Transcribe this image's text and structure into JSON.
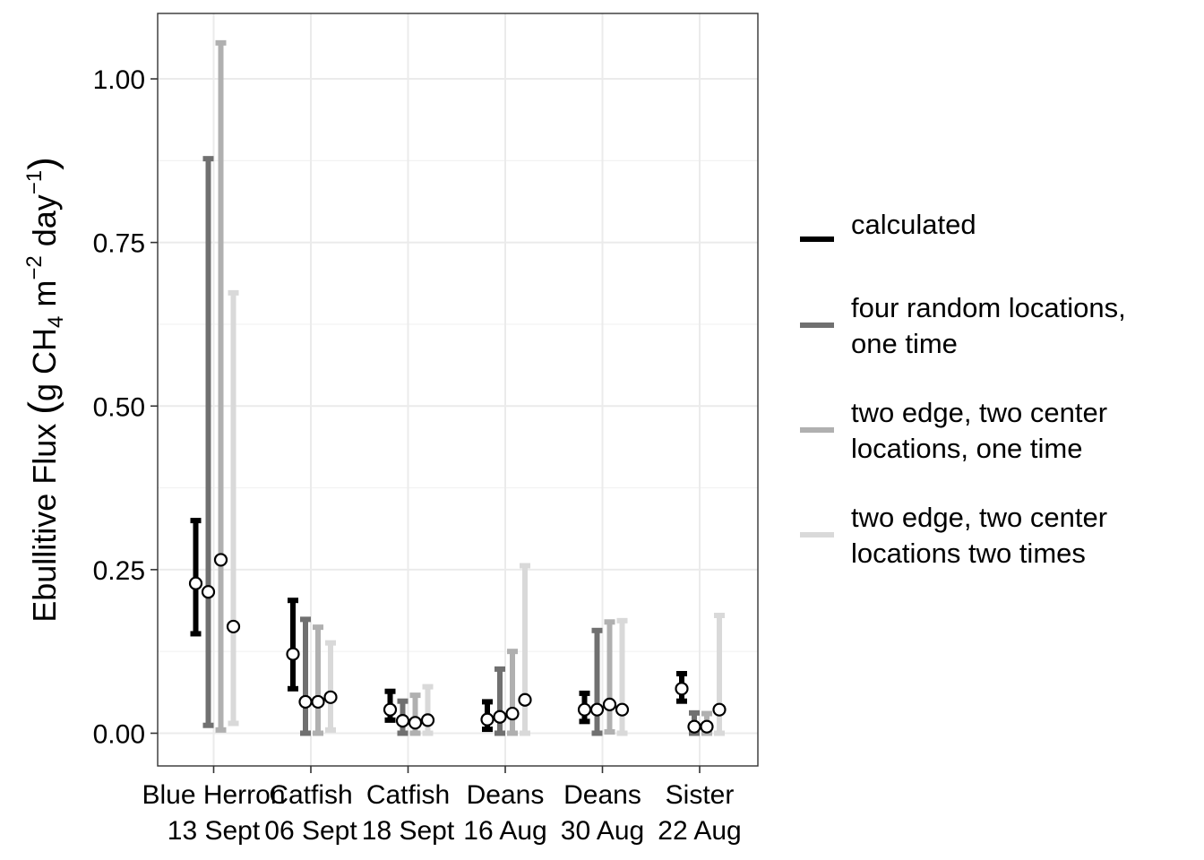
{
  "chart_data": {
    "type": "errorbar",
    "xlabel": "",
    "ylabel_parts": {
      "prefix": "Ebullitive Flux ",
      "open_paren": "(",
      "g_ch": "g CH",
      "sub4": "4",
      "m": " m",
      "sup_neg2": "−2",
      "day": " day",
      "sup_neg1": "−1",
      "close_paren": ")"
    },
    "ylim": [
      -0.05,
      1.1
    ],
    "yticks": [
      0.0,
      0.25,
      0.5,
      0.75,
      1.0
    ],
    "ytick_labels": [
      "0.00",
      "0.25",
      "0.50",
      "0.75",
      "1.00"
    ],
    "grid": true,
    "legend_position": "right",
    "categories": [
      {
        "line1": "Blue Herron",
        "line2": "13 Sept"
      },
      {
        "line1": "Catfish",
        "line2": "06 Sept"
      },
      {
        "line1": "Catfish",
        "line2": "18 Sept"
      },
      {
        "line1": "Deans",
        "line2": "16 Aug"
      },
      {
        "line1": "Deans",
        "line2": "30 Aug"
      },
      {
        "line1": "Sister",
        "line2": "22 Aug"
      }
    ],
    "series": [
      {
        "name_lines": [
          "calculated"
        ],
        "color": "#000000",
        "mean": [
          0.229,
          0.121,
          0.036,
          0.021,
          0.036,
          0.068
        ],
        "lower": [
          0.152,
          0.068,
          0.02,
          0.006,
          0.018,
          0.049
        ],
        "upper": [
          0.325,
          0.203,
          0.064,
          0.048,
          0.061,
          0.091
        ]
      },
      {
        "name_lines": [
          "four random locations,",
          "one time"
        ],
        "color": "#707070",
        "mean": [
          0.216,
          0.048,
          0.019,
          0.025,
          0.036,
          0.01
        ],
        "lower": [
          0.012,
          0.0,
          0.0,
          0.0,
          0.0,
          0.0
        ],
        "upper": [
          0.878,
          0.174,
          0.049,
          0.098,
          0.157,
          0.031
        ]
      },
      {
        "name_lines": [
          "two edge, two center",
          "locations, one time"
        ],
        "color": "#b0b0b0",
        "mean": [
          0.265,
          0.048,
          0.016,
          0.03,
          0.044,
          0.01
        ],
        "lower": [
          0.005,
          0.0,
          0.0,
          0.0,
          0.002,
          0.0
        ],
        "upper": [
          1.055,
          0.162,
          0.058,
          0.125,
          0.17,
          0.03
        ]
      },
      {
        "name_lines": [
          "two edge, two center",
          "locations two times"
        ],
        "color": "#d9d9d9",
        "mean": [
          0.163,
          0.055,
          0.02,
          0.051,
          0.036,
          0.036
        ],
        "lower": [
          0.015,
          0.005,
          0.0,
          0.0,
          0.0,
          0.0
        ],
        "upper": [
          0.673,
          0.138,
          0.071,
          0.256,
          0.172,
          0.18
        ]
      }
    ]
  }
}
